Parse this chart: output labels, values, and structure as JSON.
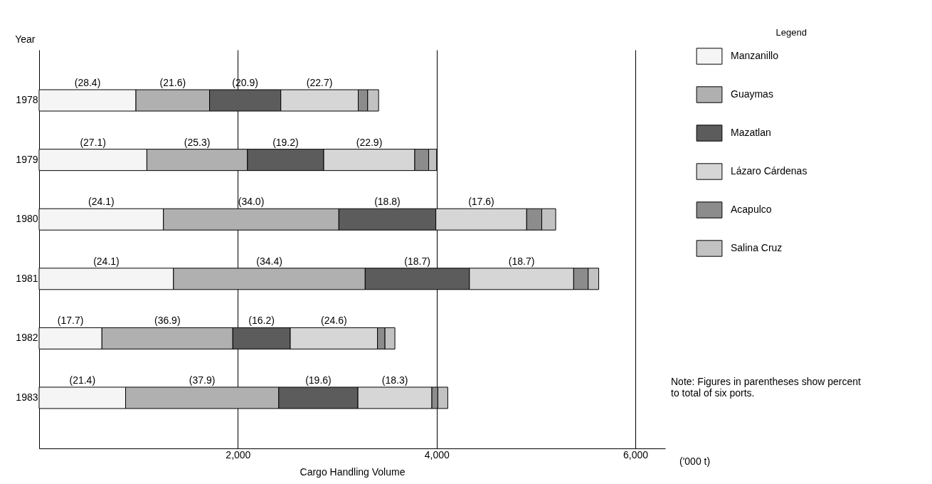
{
  "chart_data": {
    "type": "bar",
    "orientation": "horizontal",
    "stacked": true,
    "xlabel": "Cargo Handling Volume",
    "ylabel": "Year",
    "legend_title": "Legend",
    "categories": [
      "1978",
      "1979",
      "1980",
      "1981",
      "1982",
      "1983"
    ],
    "series": [
      {
        "name": "Manzanillo",
        "color": "#f5f5f5",
        "values": [
          974,
          1084,
          1251,
          1352,
          632,
          870
        ]
      },
      {
        "name": "Guaymas",
        "color": "#b0b0b0",
        "values": [
          741,
          1012,
          1765,
          1929,
          1317,
          1541
        ]
      },
      {
        "name": "Mazatlan",
        "color": "#5c5c5c",
        "values": [
          717,
          768,
          976,
          1049,
          578,
          797
        ]
      },
      {
        "name": "Lázaro Cárdenas",
        "color": "#d6d6d6",
        "values": [
          779,
          916,
          914,
          1049,
          878,
          744
        ]
      },
      {
        "name": "Acapulco",
        "color": "#8c8c8c",
        "values": [
          95,
          140,
          152,
          146,
          75,
          60
        ]
      },
      {
        "name": "Salina Cruz",
        "color": "#c2c2c2",
        "values": [
          110,
          80,
          140,
          106,
          100,
          100
        ]
      }
    ],
    "xlim": [
      0,
      6300
    ],
    "xticks": [
      {
        "value": 2000,
        "label": "2,000"
      },
      {
        "value": 4000,
        "label": "4,000"
      },
      {
        "value": 6000,
        "label": "6,000"
      }
    ],
    "grid": "x",
    "legend": "right",
    "annotations": [
      "('000 t)",
      "Note: Figures in parentheses show percent to total of six ports.",
      "(28.4)",
      "(21.6)",
      "(20.9)",
      "(22.7)",
      "(27.1)",
      "(25.3)",
      "(19.2)",
      "(22.9)",
      "(24.1)",
      "(34.0)",
      "(18.8)",
      "(17.6)",
      "(24.1)",
      "(34.4)",
      "(18.7)",
      "(18.7)",
      "(17.7)",
      "(36.9)",
      "(16.2)",
      "(24.6)",
      "(21.4)",
      "(37.9)",
      "(19.6)",
      "(18.3)"
    ]
  }
}
